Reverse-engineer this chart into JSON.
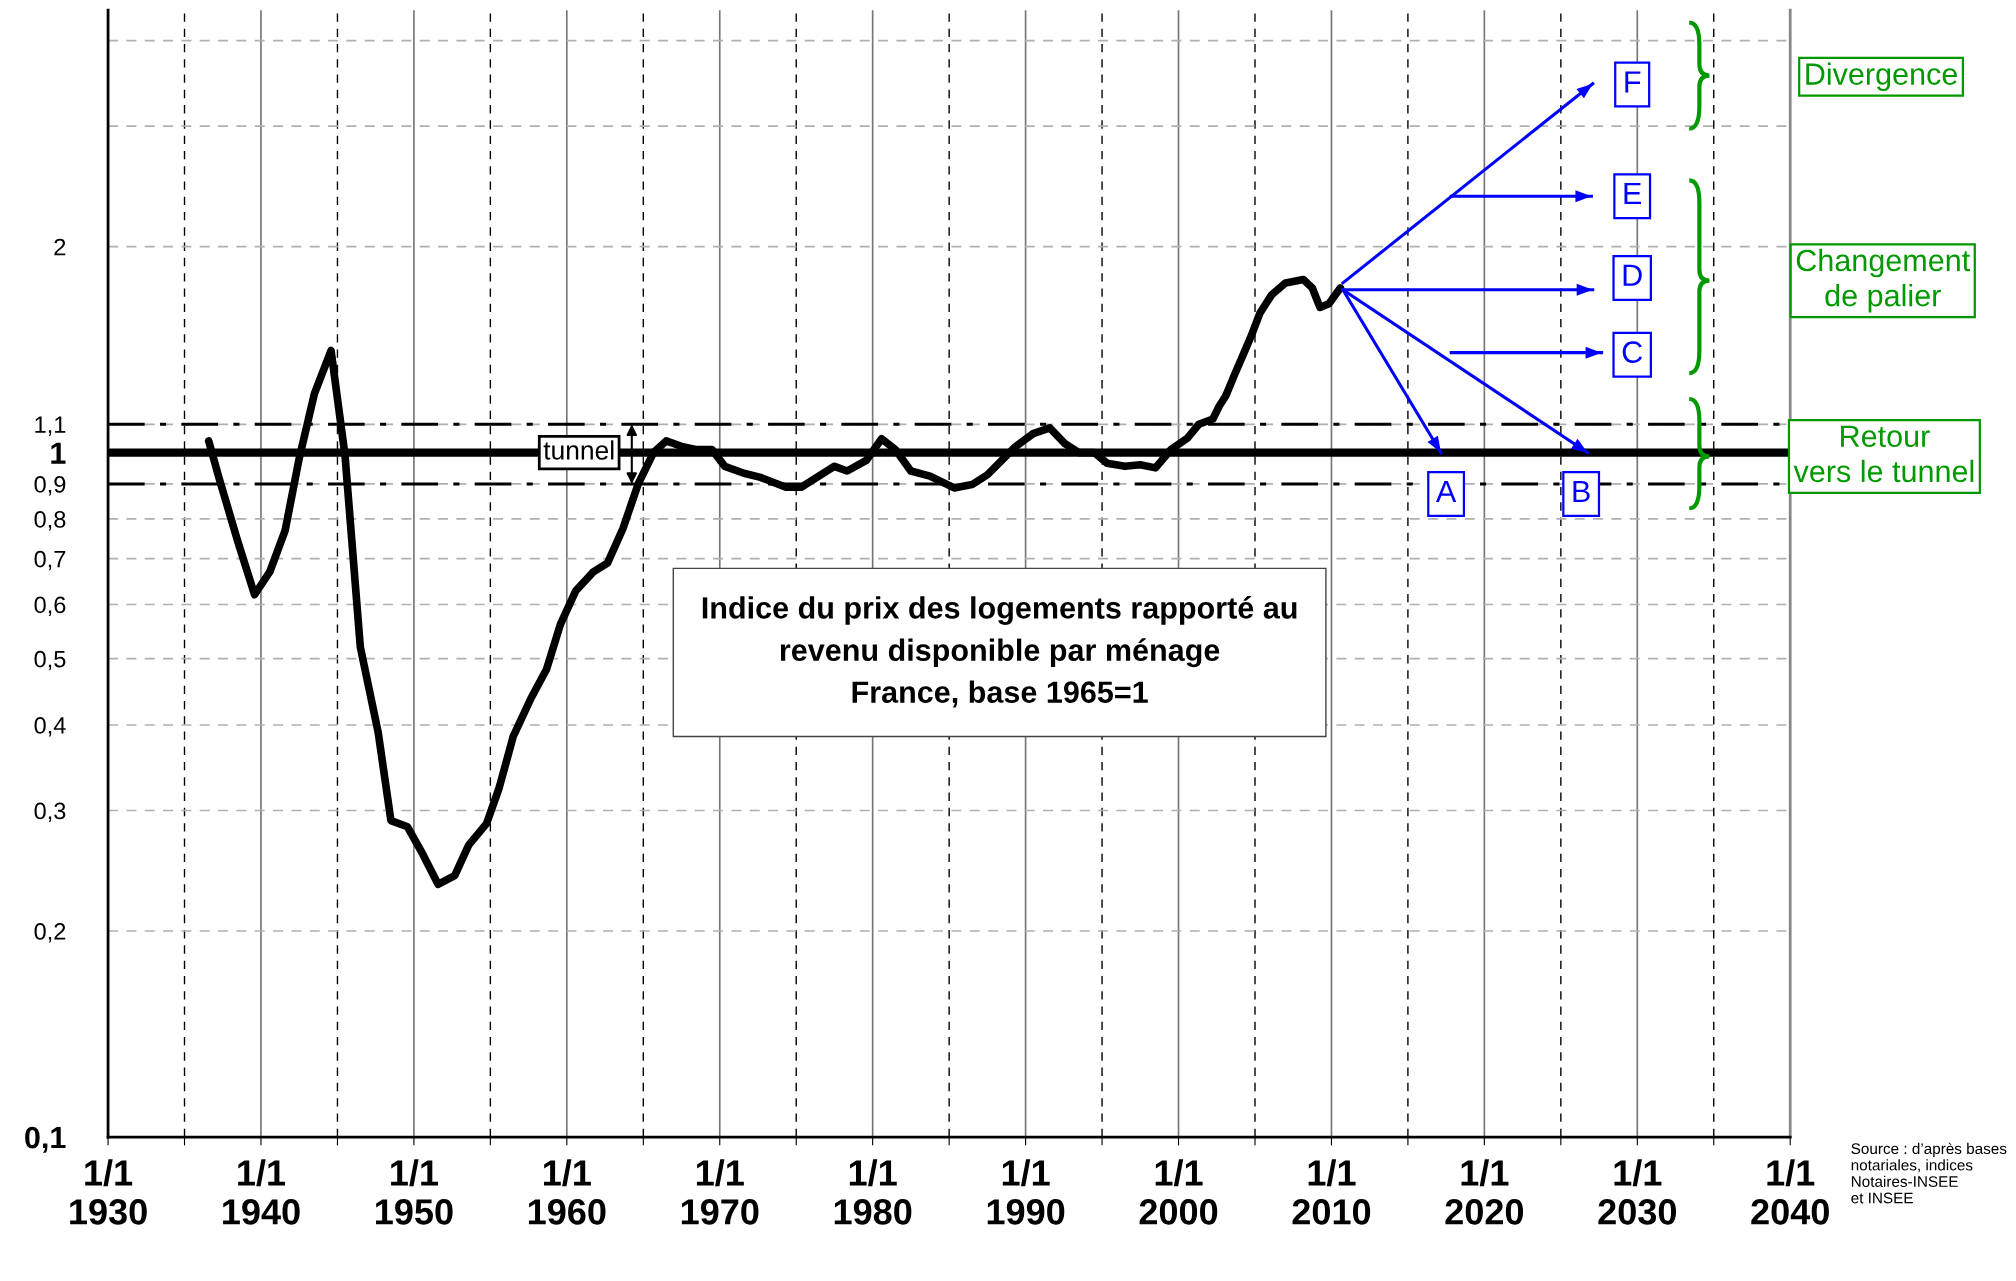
{
  "chart_data": {
    "type": "line",
    "title": "Indice du prix des logements rapporté au\nrevenu disponible par ménage\nFrance, base 1965=1",
    "series": [
      {
        "color": "#000000",
        "x": [
          "1936-08",
          "1937-04",
          "1938-07",
          "1939-08",
          "1940-08",
          "1941-08",
          "1942-07",
          "1943-07",
          "1944-08",
          "1945-07",
          "1946-07",
          "1947-09",
          "1948-07",
          "1949-08",
          "1950-08",
          "1951-08",
          "1952-09",
          "1953-08",
          "1954-10",
          "1955-08",
          "1956-07",
          "1957-09",
          "1958-09",
          "1959-08",
          "1960-08",
          "1961-10",
          "1962-09",
          "1963-09",
          "1964-09",
          "1965-09",
          "1966-07",
          "1967-08",
          "1968-07",
          "1969-07",
          "1970-05",
          "1971-08",
          "1972-09",
          "1974-05",
          "1975-05",
          "1977-07",
          "1978-05",
          "1979-08",
          "1980-08",
          "1981-07",
          "1982-07",
          "1983-10",
          "1985-05",
          "1986-07",
          "1987-07",
          "1989-05",
          "1990-07",
          "1991-08",
          "1992-08",
          "1993-07",
          "1994-07",
          "1995-05",
          "1996-07",
          "1997-07",
          "1998-07",
          "1999-07",
          "2000-08",
          "2001-05",
          "2002-04",
          "2002-09",
          "2003-02",
          "2003-09",
          "2004-03",
          "2004-10",
          "2005-05",
          "2006-02",
          "2007-01",
          "2008-03",
          "2008-10",
          "2009-04",
          "2009-11",
          "2010-08"
        ],
        "values": [
          1.04,
          0.92,
          0.74,
          0.62,
          0.67,
          0.77,
          0.98,
          1.22,
          1.41,
          0.99,
          0.52,
          0.39,
          0.29,
          0.284,
          0.259,
          0.234,
          0.241,
          0.267,
          0.287,
          0.324,
          0.385,
          0.438,
          0.482,
          0.561,
          0.628,
          0.67,
          0.69,
          0.774,
          0.9,
          1.0,
          1.04,
          1.02,
          1.01,
          1.01,
          0.955,
          0.933,
          0.92,
          0.89,
          0.89,
          0.955,
          0.94,
          0.974,
          1.048,
          1.01,
          0.94,
          0.924,
          0.888,
          0.898,
          0.928,
          1.02,
          1.066,
          1.087,
          1.03,
          1.0,
          1.0,
          0.965,
          0.955,
          0.96,
          0.95,
          1.01,
          1.05,
          1.1,
          1.12,
          1.17,
          1.21,
          1.3,
          1.38,
          1.48,
          1.6,
          1.7,
          1.77,
          1.79,
          1.74,
          1.63,
          1.65,
          1.74
        ]
      },
      {
        "color": "#0000ff",
        "x": [
          "2010-10",
          "2027-02"
        ],
        "values": [
          1.77,
          3.46
        ]
      },
      {
        "color": "#0000ff",
        "x": [
          "2017-11",
          "2027-01"
        ],
        "values": [
          2.37,
          2.37
        ]
      },
      {
        "color": "#0000ff",
        "x": [
          "2010-10",
          "2027-02"
        ],
        "values": [
          1.73,
          1.73
        ]
      },
      {
        "color": "#0000ff",
        "x": [
          "2017-11",
          "2027-09"
        ],
        "values": [
          1.4,
          1.4
        ]
      },
      {
        "color": "#0000ff",
        "x": [
          "2010-10",
          "2026-10"
        ],
        "values": [
          1.73,
          1.0
        ]
      },
      {
        "color": "#0000ff",
        "x": [
          "2010-10",
          "2017-03"
        ],
        "values": [
          1.73,
          1.0
        ]
      }
    ],
    "log": true,
    "xlim": [
      "1930-01-01",
      "2040-01-01"
    ],
    "xticks": [
      {
        "value": "1930-01-01",
        "label": "1/1\n1930"
      },
      {
        "value": "1935-01-01",
        "label": null
      },
      {
        "value": "1940-01-01",
        "label": "1/1\n1940"
      },
      {
        "value": "1945-01-01",
        "label": null
      },
      {
        "value": "1950-01-01",
        "label": "1/1\n1950"
      },
      {
        "value": "1955-01-01",
        "label": null
      },
      {
        "value": "1960-01-01",
        "label": "1/1\n1960"
      },
      {
        "value": "1965-01-01",
        "label": null
      },
      {
        "value": "1970-01-01",
        "label": "1/1\n1970"
      },
      {
        "value": "1975-01-01",
        "label": null
      },
      {
        "value": "1980-01-01",
        "label": "1/1\n1980"
      },
      {
        "value": "1985-01-01",
        "label": null
      },
      {
        "value": "1990-01-01",
        "label": "1/1\n1990"
      },
      {
        "value": "1995-01-01",
        "label": null
      },
      {
        "value": "2000-01-01",
        "label": "1/1\n2000"
      },
      {
        "value": "2005-01-01",
        "label": null
      },
      {
        "value": "2010-01-01",
        "label": "1/1\n2010"
      },
      {
        "value": "2015-01-01",
        "label": null
      },
      {
        "value": "2020-01-01",
        "label": "1/1\n2020"
      },
      {
        "value": "2025-01-01",
        "label": null
      },
      {
        "value": "2030-01-01",
        "label": "1/1\n2030"
      },
      {
        "value": "2035-01-01",
        "label": null
      },
      {
        "value": "2040-01-01",
        "label": "1/1\n2040"
      }
    ],
    "ylim": [
      0.1,
      4.43
    ],
    "yticks": [
      {
        "value": 0.1,
        "label": "0,1"
      },
      {
        "value": 0.2,
        "label": "0,2"
      },
      {
        "value": 0.3,
        "label": "0,3"
      },
      {
        "value": 0.4,
        "label": "0,4"
      },
      {
        "value": 0.5,
        "label": "0,5"
      },
      {
        "value": 0.6,
        "label": "0,6"
      },
      {
        "value": 0.7,
        "label": "0,7"
      },
      {
        "value": 0.8,
        "label": "0,8"
      },
      {
        "value": 0.9,
        "label": "0,9"
      },
      1,
      {
        "value": 1.1,
        "label": "1,1"
      },
      2,
      {
        "value": 3,
        "label": null
      },
      {
        "value": 4,
        "label": null
      }
    ],
    "grid": true,
    "marker": "none",
    "line_style": "solid",
    "ref_lines": [
      {
        "axis": "y",
        "value": 1,
        "label": null,
        "color": "#000000",
        "line_style": "solid"
      },
      {
        "axis": "y",
        "value": 1.1,
        "label": null,
        "color": "#000000",
        "line_style": "dashdot"
      },
      {
        "axis": "y",
        "value": 0.9,
        "label": null,
        "color": "#000000",
        "line_style": "dashdot"
      }
    ],
    "annotations": [
      {
        "text": "tunnel",
        "x": "1964-04",
        "y": 1
      },
      {
        "text": "A",
        "x": "2017-07",
        "y": 0.87
      },
      {
        "text": "B",
        "x": "2026-05",
        "y": 0.87
      },
      {
        "text": "C",
        "x": "2029-09",
        "y": 1.39
      },
      {
        "text": "D",
        "x": "2029-09",
        "y": 1.8
      },
      {
        "text": "E",
        "x": "2029-09",
        "y": 2.37
      },
      {
        "text": "F",
        "x": "2029-09",
        "y": 3.45
      },
      "Divergence",
      "Changement\nde palier",
      "Retour\nvers le tunnel",
      "Source : d’après bases\nnotariales, indices\nNotaires-INSEE\net INSEE"
    ]
  }
}
